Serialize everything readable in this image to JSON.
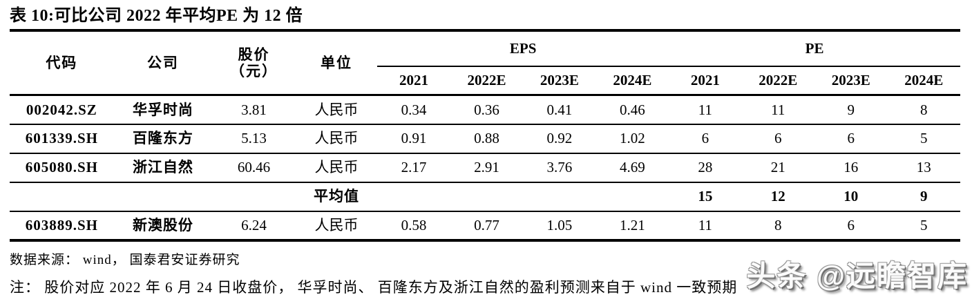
{
  "title": "表 10:可比公司 2022 年平均PE 为 12 倍",
  "table": {
    "headers": {
      "code": "代码",
      "company": "公司",
      "price_line1": "股价",
      "price_line2": "（元）",
      "unit": "单位",
      "eps_group": "EPS",
      "pe_group": "PE",
      "eps_years": [
        "2021",
        "2022E",
        "2023E",
        "2024E"
      ],
      "pe_years": [
        "2021",
        "2022E",
        "2023E",
        "2024E"
      ]
    },
    "rows": [
      {
        "code": "002042.SZ",
        "company": "华孚时尚",
        "price": "3.81",
        "unit": "人民币",
        "eps": [
          "0.34",
          "0.36",
          "0.41",
          "0.46"
        ],
        "pe": [
          "11",
          "11",
          "9",
          "8"
        ]
      },
      {
        "code": "601339.SH",
        "company": "百隆东方",
        "price": "5.13",
        "unit": "人民币",
        "eps": [
          "0.91",
          "0.88",
          "0.92",
          "1.02"
        ],
        "pe": [
          "6",
          "6",
          "6",
          "5"
        ]
      },
      {
        "code": "605080.SH",
        "company": "浙江自然",
        "price": "60.46",
        "unit": "人民币",
        "eps": [
          "2.17",
          "2.91",
          "3.76",
          "4.69"
        ],
        "pe": [
          "28",
          "21",
          "16",
          "13"
        ]
      },
      {
        "code": "",
        "company": "",
        "price": "",
        "unit": "平均值",
        "eps": [
          "",
          "",
          "",
          ""
        ],
        "pe": [
          "15",
          "12",
          "10",
          "9"
        ]
      },
      {
        "code": "603889.SH",
        "company": "新澳股份",
        "price": "6.24",
        "unit": "人民币",
        "eps": [
          "0.58",
          "0.77",
          "1.05",
          "1.21"
        ],
        "pe": [
          "11",
          "8",
          "6",
          "5"
        ]
      }
    ]
  },
  "footer": {
    "source": "数据来源： wind， 国泰君安证券研究",
    "note": "注： 股价对应 2022 年 6 月 24 日收盘价， 华孚时尚、 百隆东方及浙江自然的盈利预测来自于 wind 一致预期",
    "watermark": "头条 @远瞻智库"
  },
  "colors": {
    "text": "#000000",
    "rule_line": "#000000",
    "watermark_gray": "#8f8f8f"
  }
}
